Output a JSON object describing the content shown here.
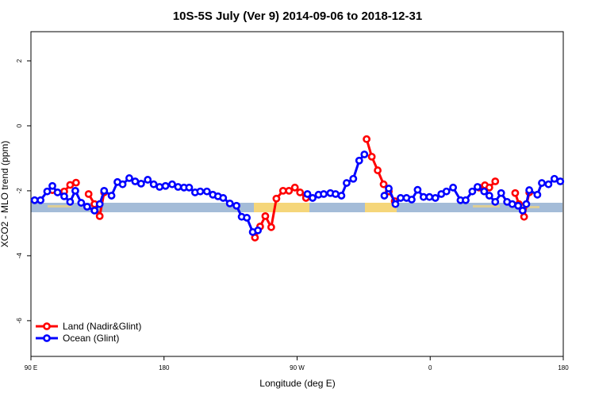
{
  "chart_data": {
    "type": "line",
    "title": "10S-5S July (Ver 9)   2014-09-06 to 2018-12-31",
    "x_label": "Longitude (deg E)",
    "y_label": "XCO2 - MLO trend (ppm)",
    "xlim": [
      90,
      450
    ],
    "ylim": [
      -7.1,
      2.9
    ],
    "xticks": [
      {
        "value": 90,
        "label": "90 E"
      },
      180,
      {
        "value": 270,
        "label": "90 W"
      },
      {
        "value": 360,
        "label": "0"
      },
      {
        "value": 450,
        "label": "180"
      }
    ],
    "yticks": [
      2,
      0,
      -2,
      -4,
      -6
    ],
    "legend": "bottom-left",
    "series": [
      {
        "name": "Land (Nadir&Glint)",
        "color": "#ff0000",
        "x": [
          104.5,
          112.5,
          116.5,
          120.5,
          125,
          129,
          133,
          136.5,
          139.5,
          200,
          241.5,
          245,
          248.5,
          252.5,
          256,
          260.5,
          264.5,
          268.5,
          272,
          276,
          300,
          317,
          320.5,
          324.5,
          328.5,
          332,
          336,
          360,
          393,
          397,
          400,
          404,
          410,
          417.5,
          420,
          423.5,
          427
        ],
        "values": [
          -1.98,
          -2.02,
          -1.82,
          -1.75,
          null,
          -2.1,
          -2.41,
          -2.78,
          -2.05,
          null,
          -3.44,
          -3.1,
          -2.78,
          -3.12,
          -2.24,
          -2.0,
          -2.0,
          -1.9,
          -2.05,
          -2.22,
          null,
          -0.41,
          -0.95,
          -1.37,
          -1.8,
          -2.02,
          -2.32,
          null,
          -1.9,
          -1.83,
          -1.9,
          -1.71,
          null,
          -2.07,
          -2.41,
          -2.8,
          -2.05
        ]
      },
      {
        "name": "Ocean (Glint)",
        "color": "#0000ff",
        "x": [
          92.5,
          96.5,
          101,
          104.5,
          108,
          112.5,
          116.5,
          120,
          124,
          128,
          133,
          136.5,
          139.5,
          144.5,
          148.5,
          152,
          156.5,
          160.5,
          164.5,
          169,
          173,
          177,
          181,
          185.5,
          189.5,
          193.5,
          197,
          201,
          204.5,
          209,
          213,
          216.5,
          220,
          224.5,
          229,
          232.5,
          236,
          240,
          243.5,
          260,
          277,
          280.5,
          284.5,
          288,
          292.5,
          296,
          300,
          303.5,
          308,
          312,
          315.5,
          322,
          329,
          332,
          336.5,
          340,
          344,
          347.5,
          351.5,
          355.5,
          359.5,
          363.5,
          367.5,
          371,
          375.5,
          380.5,
          384,
          388.5,
          392,
          396.5,
          400,
          404,
          408,
          412,
          415.5,
          419.5,
          422.5,
          425,
          427,
          432.5,
          435.5,
          440,
          444,
          448
        ],
        "values": [
          -2.29,
          -2.29,
          -2.02,
          -1.85,
          -2.05,
          -2.17,
          -2.34,
          -2.0,
          -2.37,
          -2.49,
          -2.61,
          -2.41,
          -2.0,
          -2.15,
          -1.73,
          -1.8,
          -1.61,
          -1.71,
          -1.78,
          -1.66,
          -1.8,
          -1.88,
          -1.85,
          -1.8,
          -1.88,
          -1.9,
          -1.9,
          -2.05,
          -2.02,
          -2.02,
          -2.12,
          -2.17,
          -2.22,
          -2.39,
          -2.46,
          -2.8,
          -2.83,
          -3.27,
          -3.22,
          null,
          -2.1,
          -2.22,
          -2.12,
          -2.1,
          -2.07,
          -2.1,
          -2.15,
          -1.76,
          -1.63,
          -1.07,
          -0.88,
          null,
          -2.15,
          -1.93,
          -2.41,
          -2.22,
          -2.22,
          -2.27,
          -1.97,
          -2.19,
          -2.19,
          -2.22,
          -2.1,
          -2.02,
          -1.9,
          -2.29,
          -2.29,
          -2.02,
          -1.88,
          -2.02,
          -2.15,
          -2.34,
          -2.07,
          -2.34,
          -2.41,
          -2.46,
          -2.61,
          -2.41,
          -1.98,
          -2.12,
          -1.76,
          -1.8,
          -1.63,
          -1.71
        ]
      }
    ]
  }
}
